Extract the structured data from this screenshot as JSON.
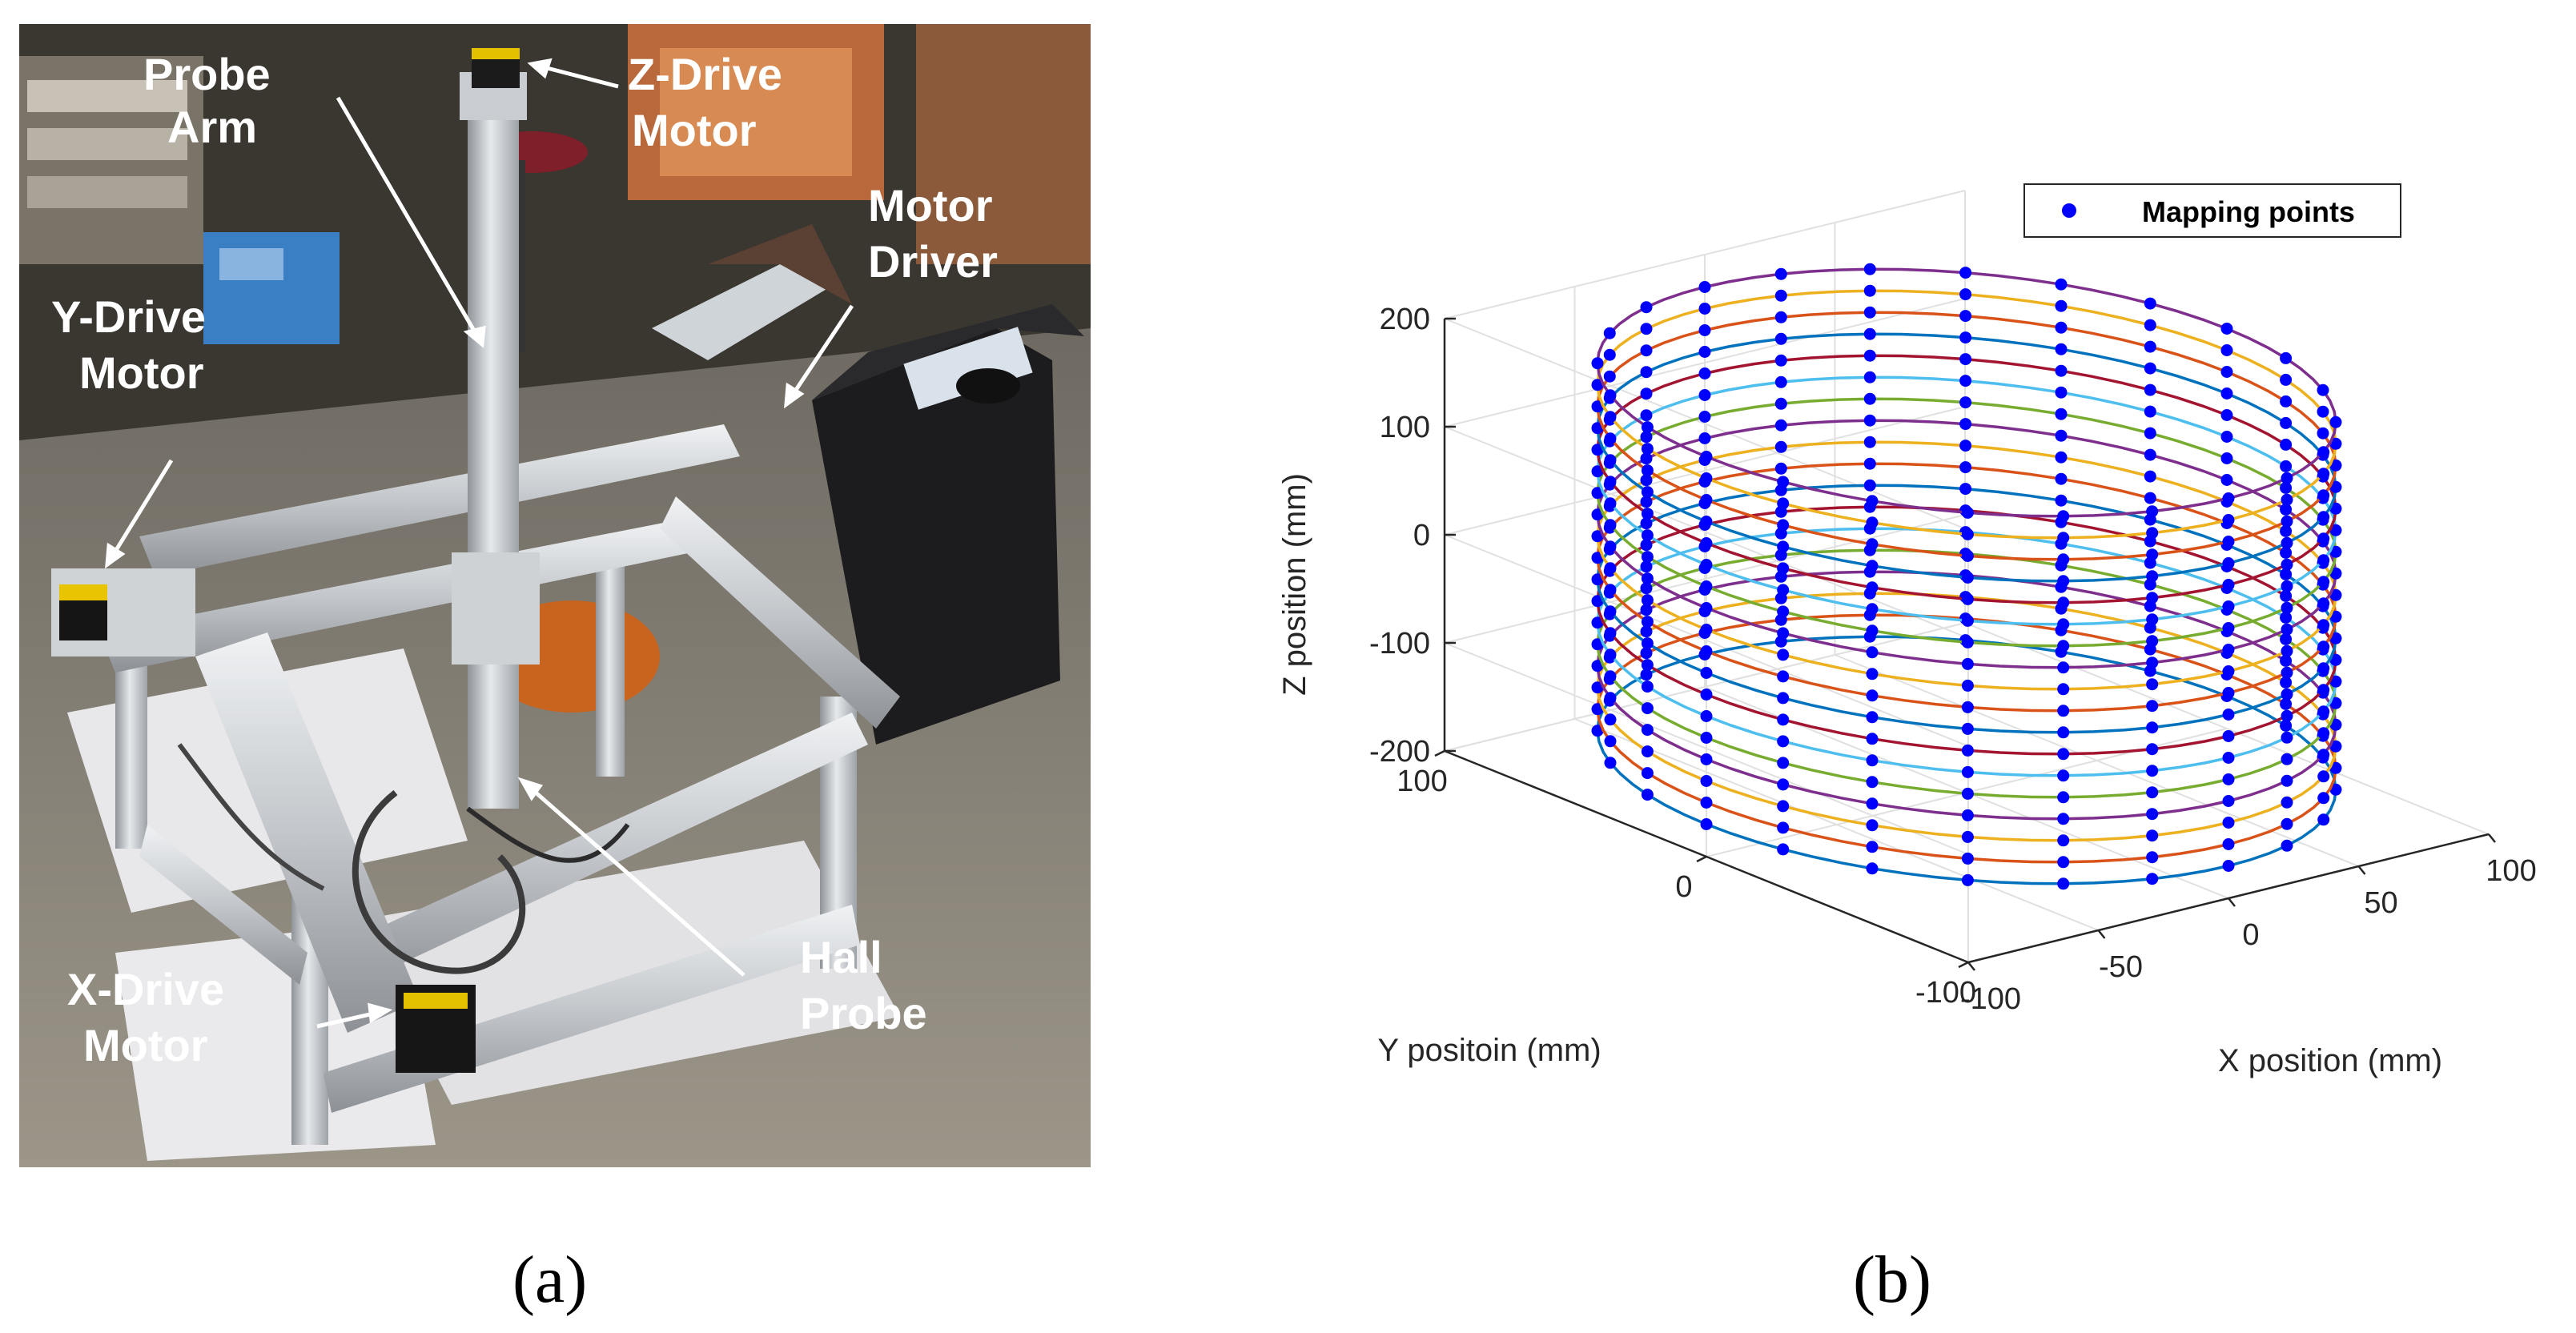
{
  "figure": {
    "panel_a": {
      "caption": "(a)",
      "labels": {
        "probe_arm": [
          "Probe",
          "Arm"
        ],
        "z_drive": [
          "Z-Drive",
          "Motor"
        ],
        "motor_driver": [
          "Motor",
          "Driver"
        ],
        "y_drive": [
          "Y-Drive",
          "Motor"
        ],
        "hall_probe": [
          "Hall",
          "Probe"
        ],
        "x_drive": [
          "X-Drive",
          "Motor"
        ]
      }
    },
    "panel_b": {
      "caption": "(b)"
    }
  },
  "chart_data": {
    "type": "scatter",
    "projection": "3d",
    "legend": {
      "entries": [
        "Mapping points"
      ],
      "placement": "top-right",
      "marker_color": "#0000ff"
    },
    "zlabel": "Z position (mm)",
    "ylabel": "Y positoin (mm)",
    "xlabel": "X position (mm)",
    "zlim": [
      -200,
      200
    ],
    "ylim": [
      -100,
      100
    ],
    "xlim": [
      -100,
      100
    ],
    "z_ticks": [
      "200",
      "100",
      "0",
      "-100",
      "-200"
    ],
    "y_ticks": [
      "100",
      "0",
      "-100"
    ],
    "x_ticks": [
      "-100",
      "-50",
      "0",
      "50",
      "100"
    ],
    "grid": true,
    "shape": "cylinder",
    "radius": 100,
    "z_values": [
      -170,
      -150,
      -130,
      -110,
      -90,
      -70,
      -50,
      -30,
      -10,
      10,
      30,
      50,
      70,
      90,
      110,
      130,
      150,
      170
    ],
    "points_per_ring": 24,
    "ring_colors": [
      "#0072BD",
      "#D95319",
      "#EDB120",
      "#7E2F8E",
      "#77AC30",
      "#4DBEEE",
      "#A2142F"
    ]
  }
}
